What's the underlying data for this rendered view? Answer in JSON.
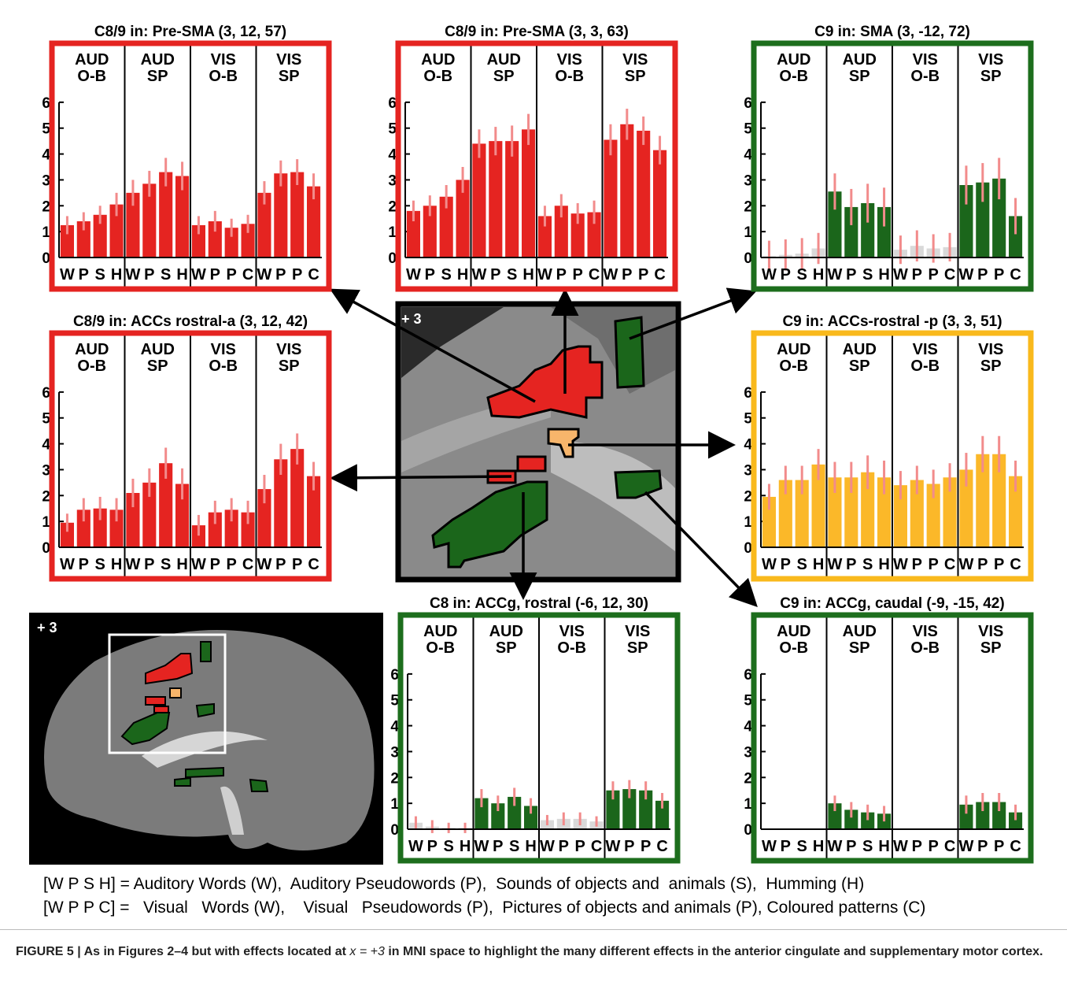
{
  "chart_data": [
    {
      "type": "bar",
      "title": "C8/9 in: Pre-SMA (3,  12, 57)",
      "frame_color": "#e52421",
      "groups": [
        [
          "AUD",
          "O-B"
        ],
        [
          "AUD",
          "SP"
        ],
        [
          "VIS",
          "O-B"
        ],
        [
          "VIS",
          "SP"
        ]
      ],
      "categories": [
        "W",
        "P",
        "S",
        "H",
        "W",
        "P",
        "S",
        "H",
        "W",
        "P",
        "P",
        "C",
        "W",
        "P",
        "P",
        "C"
      ],
      "values": [
        1.25,
        1.4,
        1.65,
        2.05,
        2.5,
        2.85,
        3.3,
        3.15,
        1.25,
        1.4,
        1.15,
        1.3,
        2.5,
        3.25,
        3.3,
        2.75
      ],
      "errors": [
        0.35,
        0.35,
        0.35,
        0.45,
        0.5,
        0.5,
        0.55,
        0.55,
        0.35,
        0.4,
        0.35,
        0.35,
        0.45,
        0.5,
        0.5,
        0.5
      ],
      "colors": [
        "#e52421",
        "#e52421",
        "#e52421",
        "#e52421",
        "#e52421",
        "#e52421",
        "#e52421",
        "#e52421",
        "#e52421",
        "#e52421",
        "#e52421",
        "#e52421",
        "#e52421",
        "#e52421",
        "#e52421",
        "#e52421"
      ],
      "error_color": "#f28b8b",
      "ylim": [
        0,
        6.3
      ],
      "yticks": [
        0,
        1,
        2,
        3,
        4,
        5,
        6
      ]
    },
    {
      "type": "bar",
      "title": "C8/9 in: Pre-SMA (3,  3, 63)",
      "frame_color": "#e52421",
      "groups": [
        [
          "AUD",
          "O-B"
        ],
        [
          "AUD",
          "SP"
        ],
        [
          "VIS",
          "O-B"
        ],
        [
          "VIS",
          "SP"
        ]
      ],
      "categories": [
        "W",
        "P",
        "S",
        "H",
        "W",
        "P",
        "S",
        "H",
        "W",
        "P",
        "P",
        "C",
        "W",
        "P",
        "P",
        "C"
      ],
      "values": [
        1.8,
        2.0,
        2.35,
        3.0,
        4.4,
        4.5,
        4.5,
        4.95,
        1.6,
        2.0,
        1.7,
        1.75,
        4.55,
        5.15,
        4.9,
        4.15
      ],
      "errors": [
        0.4,
        0.4,
        0.45,
        0.5,
        0.55,
        0.55,
        0.6,
        0.6,
        0.4,
        0.45,
        0.4,
        0.45,
        0.6,
        0.6,
        0.55,
        0.55
      ],
      "colors": [
        "#e52421",
        "#e52421",
        "#e52421",
        "#e52421",
        "#e52421",
        "#e52421",
        "#e52421",
        "#e52421",
        "#e52421",
        "#e52421",
        "#e52421",
        "#e52421",
        "#e52421",
        "#e52421",
        "#e52421",
        "#e52421"
      ],
      "error_color": "#f28b8b",
      "ylim": [
        0,
        6.3
      ],
      "yticks": [
        0,
        1,
        2,
        3,
        4,
        5,
        6
      ]
    },
    {
      "type": "bar",
      "title": "C9 in: SMA (3,  -12, 72)",
      "frame_color": "#1d6e1d",
      "groups": [
        [
          "AUD",
          "O-B"
        ],
        [
          "AUD",
          "SP"
        ],
        [
          "VIS",
          "O-B"
        ],
        [
          "VIS",
          "SP"
        ]
      ],
      "categories": [
        "W",
        "P",
        "S",
        "H",
        "W",
        "P",
        "S",
        "H",
        "W",
        "P",
        "P",
        "C",
        "W",
        "P",
        "P",
        "C"
      ],
      "values": [
        0.05,
        0.1,
        0.15,
        0.35,
        2.55,
        1.95,
        2.1,
        1.95,
        0.3,
        0.45,
        0.35,
        0.4,
        2.8,
        2.9,
        3.05,
        1.6
      ],
      "errors": [
        0.6,
        0.6,
        0.6,
        0.6,
        0.7,
        0.7,
        0.75,
        0.75,
        0.55,
        0.6,
        0.55,
        0.55,
        0.75,
        0.75,
        0.8,
        0.7
      ],
      "colors": [
        "#d9d9d9",
        "#d9d9d9",
        "#d9d9d9",
        "#d9d9d9",
        "#1b661b",
        "#1b661b",
        "#1b661b",
        "#1b661b",
        "#d9d9d9",
        "#d9d9d9",
        "#d9d9d9",
        "#d9d9d9",
        "#1b661b",
        "#1b661b",
        "#1b661b",
        "#1b661b"
      ],
      "error_color": "#f28b8b",
      "ylim": [
        0,
        6.3
      ],
      "yticks": [
        0,
        1,
        2,
        3,
        4,
        5,
        6
      ]
    },
    {
      "type": "bar",
      "title": "C8/9 in: ACCs rostral-a (3,  12, 42)",
      "frame_color": "#e52421",
      "groups": [
        [
          "AUD",
          "O-B"
        ],
        [
          "AUD",
          "SP"
        ],
        [
          "VIS",
          "O-B"
        ],
        [
          "VIS",
          "SP"
        ]
      ],
      "categories": [
        "W",
        "P",
        "S",
        "H",
        "W",
        "P",
        "S",
        "H",
        "W",
        "P",
        "P",
        "C",
        "W",
        "P",
        "P",
        "C"
      ],
      "values": [
        0.95,
        1.45,
        1.5,
        1.45,
        2.1,
        2.5,
        3.25,
        2.45,
        0.85,
        1.35,
        1.45,
        1.35,
        2.25,
        3.4,
        3.8,
        2.75
      ],
      "errors": [
        0.35,
        0.45,
        0.45,
        0.45,
        0.55,
        0.55,
        0.6,
        0.6,
        0.4,
        0.45,
        0.45,
        0.45,
        0.55,
        0.6,
        0.6,
        0.55
      ],
      "colors": [
        "#e52421",
        "#e52421",
        "#e52421",
        "#e52421",
        "#e52421",
        "#e52421",
        "#e52421",
        "#e52421",
        "#e52421",
        "#e52421",
        "#e52421",
        "#e52421",
        "#e52421",
        "#e52421",
        "#e52421",
        "#e52421"
      ],
      "error_color": "#f28b8b",
      "ylim": [
        0,
        6.3
      ],
      "yticks": [
        0,
        1,
        2,
        3,
        4,
        5,
        6
      ]
    },
    {
      "type": "bar",
      "title": "C9 in: ACCs-rostral -p (3, 3, 51)",
      "frame_color": "#f9b91c",
      "groups": [
        [
          "AUD",
          "O-B"
        ],
        [
          "AUD",
          "SP"
        ],
        [
          "VIS",
          "O-B"
        ],
        [
          "VIS",
          "SP"
        ]
      ],
      "categories": [
        "W",
        "P",
        "S",
        "H",
        "W",
        "P",
        "S",
        "H",
        "W",
        "P",
        "P",
        "C",
        "W",
        "P",
        "P",
        "C"
      ],
      "values": [
        1.95,
        2.6,
        2.6,
        3.2,
        2.7,
        2.7,
        2.9,
        2.7,
        2.4,
        2.6,
        2.45,
        2.7,
        3.0,
        3.6,
        3.6,
        2.75
      ],
      "errors": [
        0.5,
        0.55,
        0.55,
        0.6,
        0.6,
        0.6,
        0.65,
        0.65,
        0.55,
        0.55,
        0.55,
        0.55,
        0.65,
        0.7,
        0.7,
        0.6
      ],
      "colors": [
        "#fbb829",
        "#fbb829",
        "#fbb829",
        "#fbb829",
        "#fbb829",
        "#fbb829",
        "#fbb829",
        "#fbb829",
        "#fbb829",
        "#fbb829",
        "#fbb829",
        "#fbb829",
        "#fbb829",
        "#fbb829",
        "#fbb829",
        "#fbb829"
      ],
      "error_color": "#f28b8b",
      "ylim": [
        0,
        6.3
      ],
      "yticks": [
        0,
        1,
        2,
        3,
        4,
        5,
        6
      ]
    },
    {
      "type": "bar",
      "title": "C8 in: ACCg, rostral  (-6, 12, 30)",
      "frame_color": "#1d6e1d",
      "groups": [
        [
          "AUD",
          "O-B"
        ],
        [
          "AUD",
          "SP"
        ],
        [
          "VIS",
          "O-B"
        ],
        [
          "VIS",
          "SP"
        ]
      ],
      "categories": [
        "W",
        "P",
        "S",
        "H",
        "W",
        "P",
        "S",
        "H",
        "W",
        "P",
        "P",
        "C",
        "W",
        "P",
        "P",
        "C"
      ],
      "values": [
        0.25,
        0.1,
        0.05,
        0.05,
        1.2,
        1.0,
        1.25,
        0.9,
        0.35,
        0.4,
        0.4,
        0.3,
        1.5,
        1.55,
        1.5,
        1.1
      ],
      "errors": [
        0.25,
        0.25,
        0.2,
        0.2,
        0.35,
        0.3,
        0.35,
        0.3,
        0.2,
        0.25,
        0.25,
        0.2,
        0.35,
        0.35,
        0.35,
        0.3
      ],
      "colors": [
        "#d9d9d9",
        "#d9d9d9",
        "#d9d9d9",
        "#d9d9d9",
        "#1b661b",
        "#1b661b",
        "#1b661b",
        "#1b661b",
        "#d9d9d9",
        "#d9d9d9",
        "#d9d9d9",
        "#d9d9d9",
        "#1b661b",
        "#1b661b",
        "#1b661b",
        "#1b661b"
      ],
      "error_color": "#f28b8b",
      "ylim": [
        0,
        6.3
      ],
      "yticks": [
        0,
        1,
        2,
        3,
        4,
        5,
        6
      ]
    },
    {
      "type": "bar",
      "title": "C9 in: ACCg, caudal   (-9, -15, 42)",
      "frame_color": "#1d6e1d",
      "groups": [
        [
          "AUD",
          "O-B"
        ],
        [
          "AUD",
          "SP"
        ],
        [
          "VIS",
          "O-B"
        ],
        [
          "VIS",
          "SP"
        ]
      ],
      "categories": [
        "W",
        "P",
        "S",
        "H",
        "W",
        "P",
        "S",
        "H",
        "W",
        "P",
        "P",
        "C",
        "W",
        "P",
        "P",
        "C"
      ],
      "values": [
        0,
        0,
        0,
        0,
        1.0,
        0.75,
        0.65,
        0.6,
        0,
        0,
        0,
        0,
        0.95,
        1.05,
        1.05,
        0.65
      ],
      "errors": [
        0,
        0,
        0,
        0,
        0.3,
        0.3,
        0.3,
        0.3,
        0,
        0,
        0,
        0,
        0.35,
        0.35,
        0.35,
        0.3
      ],
      "colors": [
        "#d9d9d9",
        "#d9d9d9",
        "#d9d9d9",
        "#d9d9d9",
        "#1b661b",
        "#1b661b",
        "#1b661b",
        "#1b661b",
        "#d9d9d9",
        "#d9d9d9",
        "#d9d9d9",
        "#d9d9d9",
        "#1b661b",
        "#1b661b",
        "#1b661b",
        "#1b661b"
      ],
      "error_color": "#f28b8b",
      "ylim": [
        0,
        6.3
      ],
      "yticks": [
        0,
        1,
        2,
        3,
        4,
        5,
        6
      ]
    }
  ],
  "images": {
    "center_label": "+ 3",
    "sagittal_label": "+ 3"
  },
  "legend_lines": [
    "[W P S H] = Auditory Words (W),  Auditory Pseudowords (P),  Sounds of objects and  animals (S),  Humming (H)",
    "[W P P C] =   Visual   Words (W),    Visual   Pseudowords (P),  Pictures of objects and animals (P), Coloured patterns (C)"
  ],
  "caption": {
    "label": "FIGURE 5 | ",
    "before": "As in Figures 2–4 but with effects located at ",
    "math": "x = +3",
    "after": " in MNI space to highlight the many different effects in the anterior cingulate and supplementary motor cortex."
  }
}
